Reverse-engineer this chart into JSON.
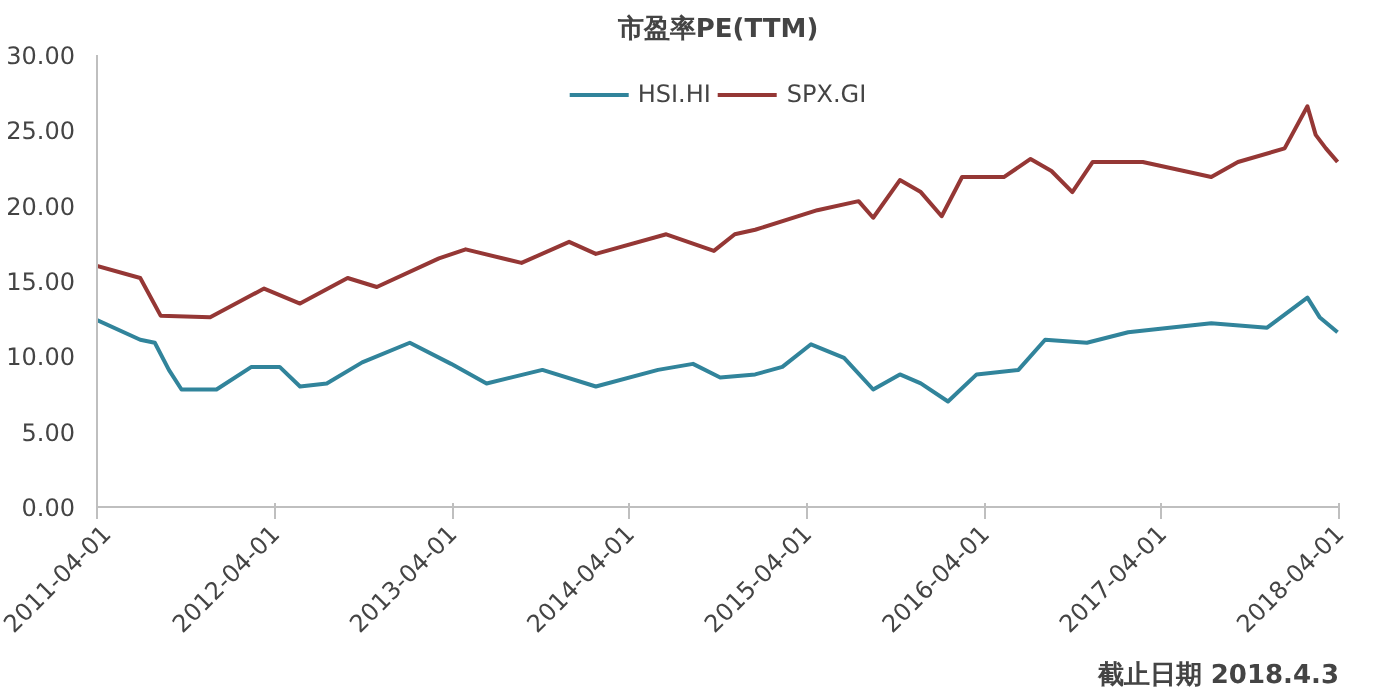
{
  "chart_data": {
    "type": "line",
    "title": "市盈率PE(TTM)",
    "xlim": [
      "2011-04-01",
      "2018-04-01"
    ],
    "xticks": [
      "2011-04-01",
      "2012-04-01",
      "2013-04-01",
      "2014-04-01",
      "2015-04-01",
      "2016-04-01",
      "2017-04-01",
      "2018-04-01"
    ],
    "ylim": [
      0,
      30
    ],
    "yticks": [
      {
        "value": 0,
        "label": "0.00"
      },
      {
        "value": 5,
        "label": "5.00"
      },
      {
        "value": 10,
        "label": "10.00"
      },
      {
        "value": 15,
        "label": "15.00"
      },
      {
        "value": 20,
        "label": "20.00"
      },
      {
        "value": 25,
        "label": "25.00"
      },
      {
        "value": 30,
        "label": "30.00"
      }
    ],
    "grid": false,
    "legend": "top",
    "marker": "none",
    "line_style": "solid",
    "annotations": [
      "截止日期 2018.4.3"
    ],
    "series": [
      {
        "name": "HSI.HI",
        "color": "#31849b",
        "x": [
          "2011-04-01",
          "2011-06-29",
          "2011-07-29",
          "2011-08-27",
          "2011-09-22",
          "2011-12-03",
          "2012-02-13",
          "2012-04-11",
          "2012-05-23",
          "2012-07-17",
          "2012-09-28",
          "2013-01-04",
          "2013-03-30",
          "2013-06-11",
          "2013-10-04",
          "2014-01-22",
          "2014-05-30",
          "2014-08-10",
          "2014-10-05",
          "2014-12-16",
          "2015-02-10",
          "2015-04-10",
          "2015-06-17",
          "2015-08-16",
          "2015-10-10",
          "2015-11-22",
          "2016-01-17",
          "2016-03-16",
          "2016-06-10",
          "2016-08-04",
          "2016-10-29",
          "2017-01-22",
          "2017-04-17",
          "2017-07-12",
          "2017-11-04",
          "2018-01-26",
          "2018-02-20",
          "2018-03-29"
        ],
        "values": [
          12.4,
          11.1,
          10.9,
          9.1,
          7.8,
          7.8,
          9.3,
          9.3,
          8.0,
          8.2,
          9.6,
          10.9,
          9.5,
          8.2,
          9.1,
          8.0,
          9.1,
          9.5,
          8.6,
          8.8,
          9.3,
          10.8,
          9.9,
          7.8,
          8.8,
          8.2,
          7.0,
          8.8,
          9.1,
          11.1,
          10.9,
          11.6,
          11.9,
          12.2,
          11.9,
          13.9,
          12.6,
          11.6
        ]
      },
      {
        "name": "SPX.GI",
        "color": "#953735",
        "x": [
          "2011-04-01",
          "2011-06-29",
          "2011-08-10",
          "2011-11-20",
          "2012-03-10",
          "2012-05-23",
          "2012-08-29",
          "2012-10-28",
          "2013-03-05",
          "2013-04-29",
          "2013-08-22",
          "2013-11-28",
          "2014-01-22",
          "2014-06-16",
          "2014-09-22",
          "2014-11-04",
          "2014-12-16",
          "2015-04-23",
          "2015-07-17",
          "2015-08-16",
          "2015-10-10",
          "2015-11-22",
          "2016-01-04",
          "2016-02-15",
          "2016-05-11",
          "2016-07-05",
          "2016-08-17",
          "2016-09-29",
          "2016-11-10",
          "2017-02-21",
          "2017-05-17",
          "2017-07-12",
          "2017-09-05",
          "2017-12-10",
          "2018-01-26",
          "2018-02-12",
          "2018-03-05",
          "2018-03-29"
        ],
        "values": [
          16.0,
          15.2,
          12.7,
          12.6,
          14.5,
          13.5,
          15.2,
          14.6,
          16.5,
          17.1,
          16.2,
          17.6,
          16.8,
          18.1,
          17.0,
          18.1,
          18.4,
          19.7,
          20.3,
          19.2,
          21.7,
          20.9,
          19.3,
          21.9,
          21.9,
          23.1,
          22.3,
          20.9,
          22.9,
          22.9,
          22.3,
          21.9,
          22.9,
          23.8,
          26.6,
          24.7,
          23.8,
          22.9
        ]
      }
    ]
  }
}
